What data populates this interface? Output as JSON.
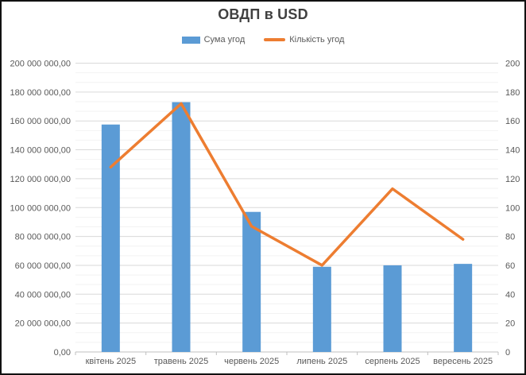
{
  "chart_data": {
    "type": "combo",
    "title": "ОВДП в USD",
    "legend_position": "top",
    "categories": [
      "квітень 2025",
      "травень 2025",
      "червень 2025",
      "липень 2025",
      "серпень 2025",
      "вересень 2025"
    ],
    "series": [
      {
        "name": "Сума угод",
        "type": "bar",
        "axis": "left",
        "color": "#5B9BD5",
        "values": [
          157500000,
          173000000,
          97000000,
          59000000,
          60000000,
          61000000
        ]
      },
      {
        "name": "Кількість угод",
        "type": "line",
        "axis": "right",
        "color": "#ED7D31",
        "values": [
          128,
          172,
          87,
          60,
          113,
          78
        ]
      }
    ],
    "left_axis": {
      "min": 0,
      "max": 200000000,
      "major": 20000000,
      "tick_labels": [
        "0,00",
        "20 000 000,00",
        "40 000 000,00",
        "60 000 000,00",
        "80 000 000,00",
        "100 000 000,00",
        "120 000 000,00",
        "140 000 000,00",
        "160 000 000,00",
        "180 000 000,00",
        "200 000 000,00"
      ]
    },
    "right_axis": {
      "min": 0,
      "max": 200,
      "major": 20,
      "tick_labels": [
        "0",
        "20",
        "40",
        "60",
        "80",
        "100",
        "120",
        "140",
        "160",
        "180",
        "200"
      ]
    },
    "grid": {
      "horizontal_major": true,
      "minor_per_major": 3,
      "vertical": false
    }
  },
  "colors": {
    "bar": "#5B9BD5",
    "line": "#ED7D31",
    "title_text": "#404040",
    "axis_text": "#595959",
    "grid_major": "#D9D9D9",
    "grid_minor": "#F2F2F2",
    "axis_line": "#BFBFBF"
  }
}
